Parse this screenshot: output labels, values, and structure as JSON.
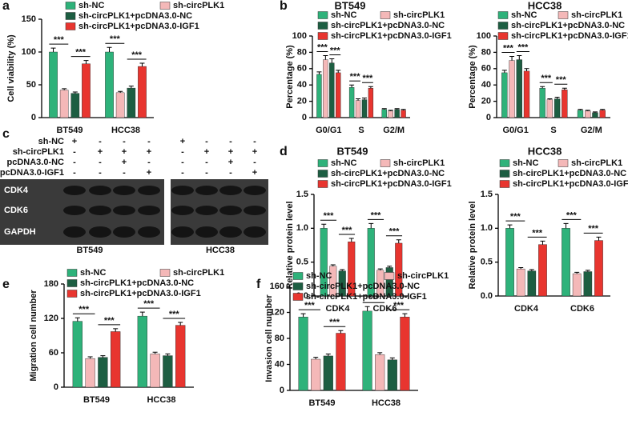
{
  "panel_labels": [
    "a",
    "b",
    "c",
    "d",
    "e",
    "f"
  ],
  "chart_data": [
    {
      "type": "bar",
      "y_label": "Cell viability (%)",
      "categories": [
        "BT549",
        "HCC38"
      ],
      "ylim": [
        0,
        150
      ],
      "yticks": [
        0,
        50,
        100,
        150
      ],
      "series": [
        {
          "name": "sh-NC",
          "color": "#2eb27a",
          "values": [
            100,
            100
          ],
          "errors": [
            6,
            7
          ]
        },
        {
          "name": "sh-circPLK1",
          "color": "#f4b8b8",
          "values": [
            42,
            38
          ],
          "errors": [
            2,
            2
          ]
        },
        {
          "name": "sh-circPLK1+pcDNA3.0-NC",
          "color": "#1d5e42",
          "values": [
            37,
            45
          ],
          "errors": [
            2,
            3
          ]
        },
        {
          "name": "sh-circPLK1+pcDNA3.0-IGF1",
          "color": "#e8352f",
          "values": [
            82,
            78
          ],
          "errors": [
            5,
            5
          ]
        }
      ],
      "annotations": [
        "***",
        "***",
        "***",
        "***"
      ]
    },
    {
      "type": "bar",
      "title": "BT549",
      "y_label": "Percentage (%)",
      "categories": [
        "G0/G1",
        "S",
        "G2/M"
      ],
      "ylim": [
        0,
        100
      ],
      "yticks": [
        0,
        20,
        40,
        60,
        80,
        100
      ],
      "series": [
        {
          "name": "sh-NC",
          "color": "#2eb27a",
          "values": [
            53,
            37,
            10
          ],
          "errors": [
            3,
            3,
            1
          ]
        },
        {
          "name": "sh-circPLK1",
          "color": "#f4b8b8",
          "values": [
            71,
            21,
            8
          ],
          "errors": [
            5,
            2,
            1
          ]
        },
        {
          "name": "sh-circPLK1+pcDNA3.0-NC",
          "color": "#1d5e42",
          "values": [
            67,
            22,
            10
          ],
          "errors": [
            5,
            2,
            1
          ]
        },
        {
          "name": "sh-circPLK1+pcDNA3.0-IGF1",
          "color": "#e8352f",
          "values": [
            55,
            36,
            9
          ],
          "errors": [
            3,
            2,
            1
          ]
        }
      ],
      "annotations": [
        "***",
        "***",
        "***",
        "***"
      ]
    },
    {
      "type": "bar",
      "title": "HCC38",
      "y_label": "Percentage (%)",
      "categories": [
        "G0/G1",
        "S",
        "G2/M"
      ],
      "ylim": [
        0,
        100
      ],
      "yticks": [
        0,
        20,
        40,
        60,
        80,
        100
      ],
      "series": [
        {
          "name": "sh-NC",
          "color": "#2eb27a",
          "values": [
            55,
            36,
            9
          ],
          "errors": [
            3,
            2,
            1
          ]
        },
        {
          "name": "sh-circPLK1",
          "color": "#f4b8b8",
          "values": [
            70,
            22,
            8
          ],
          "errors": [
            5,
            1,
            1
          ]
        },
        {
          "name": "sh-circPLK1+pcDNA3.0-NC",
          "color": "#1d5e42",
          "values": [
            71,
            23,
            6
          ],
          "errors": [
            5,
            2,
            1
          ]
        },
        {
          "name": "sh-circPLK1+pcDNA3.0-IGF1",
          "color": "#e8352f",
          "values": [
            57,
            34,
            9
          ],
          "errors": [
            3,
            2,
            1
          ]
        }
      ],
      "annotations": [
        "***",
        "***",
        "***",
        "***"
      ]
    },
    {
      "type": "bar",
      "title": "BT549",
      "y_label": "Relative protein level",
      "categories": [
        "CDK4",
        "CDK6"
      ],
      "ylim": [
        0,
        1.5
      ],
      "yticks": [
        {
          "value": 0,
          "label": "0.0"
        },
        0.5,
        {
          "value": 1,
          "label": "1.0"
        },
        1.5
      ],
      "series": [
        {
          "name": "sh-NC",
          "color": "#2eb27a",
          "values": [
            1.0,
            1.0
          ],
          "errors": [
            0.06,
            0.07
          ]
        },
        {
          "name": "sh-circPLK1",
          "color": "#f4b8b8",
          "values": [
            0.44,
            0.38
          ],
          "errors": [
            0.02,
            0.02
          ]
        },
        {
          "name": "sh-circPLK1+pcDNA3.0-NC",
          "color": "#1d5e42",
          "values": [
            0.37,
            0.42
          ],
          "errors": [
            0.02,
            0.02
          ]
        },
        {
          "name": "sh-circPLK1+pcDNA3.0-IGF1",
          "color": "#e8352f",
          "values": [
            0.8,
            0.78
          ],
          "errors": [
            0.05,
            0.05
          ]
        }
      ],
      "annotations": [
        "***",
        "***",
        "***",
        "***"
      ]
    },
    {
      "type": "bar",
      "title": "HCC38",
      "y_label": "Relative protein level",
      "categories": [
        "CDK4",
        "CDK6"
      ],
      "ylim": [
        0,
        1.5
      ],
      "yticks": [
        {
          "value": 0,
          "label": "0.0"
        },
        0.5,
        {
          "value": 1,
          "label": "1.0"
        },
        1.5
      ],
      "series": [
        {
          "name": "sh-NC",
          "color": "#2eb27a",
          "values": [
            1.0,
            1.0
          ],
          "errors": [
            0.05,
            0.07
          ]
        },
        {
          "name": "sh-circPLK1",
          "color": "#f4b8b8",
          "values": [
            0.4,
            0.33
          ],
          "errors": [
            0.02,
            0.02
          ]
        },
        {
          "name": "sh-circPLK1+pcDNA3.0-NC",
          "color": "#1d5e42",
          "values": [
            0.37,
            0.36
          ],
          "errors": [
            0.02,
            0.02
          ]
        },
        {
          "name": "sh-circPLK1+pcDNA3.0-IGF1",
          "color": "#e8352f",
          "values": [
            0.76,
            0.82
          ],
          "errors": [
            0.05,
            0.05
          ]
        }
      ],
      "annotations": [
        "***",
        "***",
        "***",
        "***"
      ]
    },
    {
      "type": "bar",
      "y_label": "Migration cell number",
      "categories": [
        "BT549",
        "HCC38"
      ],
      "ylim": [
        0,
        180
      ],
      "yticks": [
        0,
        60,
        120,
        180
      ],
      "series": [
        {
          "name": "sh-NC",
          "color": "#2eb27a",
          "values": [
            115,
            124
          ],
          "errors": [
            6,
            7
          ]
        },
        {
          "name": "sh-circPLK1",
          "color": "#f4b8b8",
          "values": [
            50,
            58
          ],
          "errors": [
            3,
            3
          ]
        },
        {
          "name": "sh-circPLK1+pcDNA3.0-NC",
          "color": "#1d5e42",
          "values": [
            52,
            55
          ],
          "errors": [
            3,
            3
          ]
        },
        {
          "name": "sh-circPLK1+pcDNA3.0-IGF1",
          "color": "#e8352f",
          "values": [
            97,
            108
          ],
          "errors": [
            5,
            5
          ]
        }
      ],
      "annotations": [
        "***",
        "***",
        "***",
        "***"
      ]
    },
    {
      "type": "bar",
      "y_label": "Invasion cell number",
      "categories": [
        "BT549",
        "HCC38"
      ],
      "ylim": [
        0,
        160
      ],
      "yticks": [
        0,
        40,
        80,
        120,
        160
      ],
      "series": [
        {
          "name": "sh-NC",
          "color": "#2eb27a",
          "values": [
            113,
            122
          ],
          "errors": [
            5,
            7
          ]
        },
        {
          "name": "sh-circPLK1",
          "color": "#f4b8b8",
          "values": [
            48,
            55
          ],
          "errors": [
            3,
            3
          ]
        },
        {
          "name": "sh-circPLK1+pcDNA3.0-NC",
          "color": "#1d5e42",
          "values": [
            53,
            47
          ],
          "errors": [
            3,
            3
          ]
        },
        {
          "name": "sh-circPLK1+pcDNA3.0-IGF1",
          "color": "#e8352f",
          "values": [
            88,
            113
          ],
          "errors": [
            4,
            5
          ]
        }
      ],
      "annotations": [
        "***",
        "***",
        "***",
        "***"
      ]
    }
  ],
  "blot": {
    "rows": [
      {
        "label": "sh-NC",
        "signs": [
          "+",
          "-",
          "-",
          "-",
          "+",
          "-",
          "-",
          "-"
        ]
      },
      {
        "label": "sh-circPLK1",
        "signs": [
          "-",
          "+",
          "+",
          "+",
          "-",
          "+",
          "+",
          "+"
        ]
      },
      {
        "label": "pcDNA3.0-NC",
        "signs": [
          "-",
          "-",
          "+",
          "-",
          "-",
          "-",
          "+",
          "-"
        ]
      },
      {
        "label": "pcDNA3.0-IGF1",
        "signs": [
          "-",
          "-",
          "-",
          "+",
          "-",
          "-",
          "-",
          "+"
        ]
      }
    ],
    "bands": [
      "CDK4",
      "CDK6",
      "GAPDH"
    ],
    "groups": [
      "BT549",
      "HCC38"
    ]
  }
}
